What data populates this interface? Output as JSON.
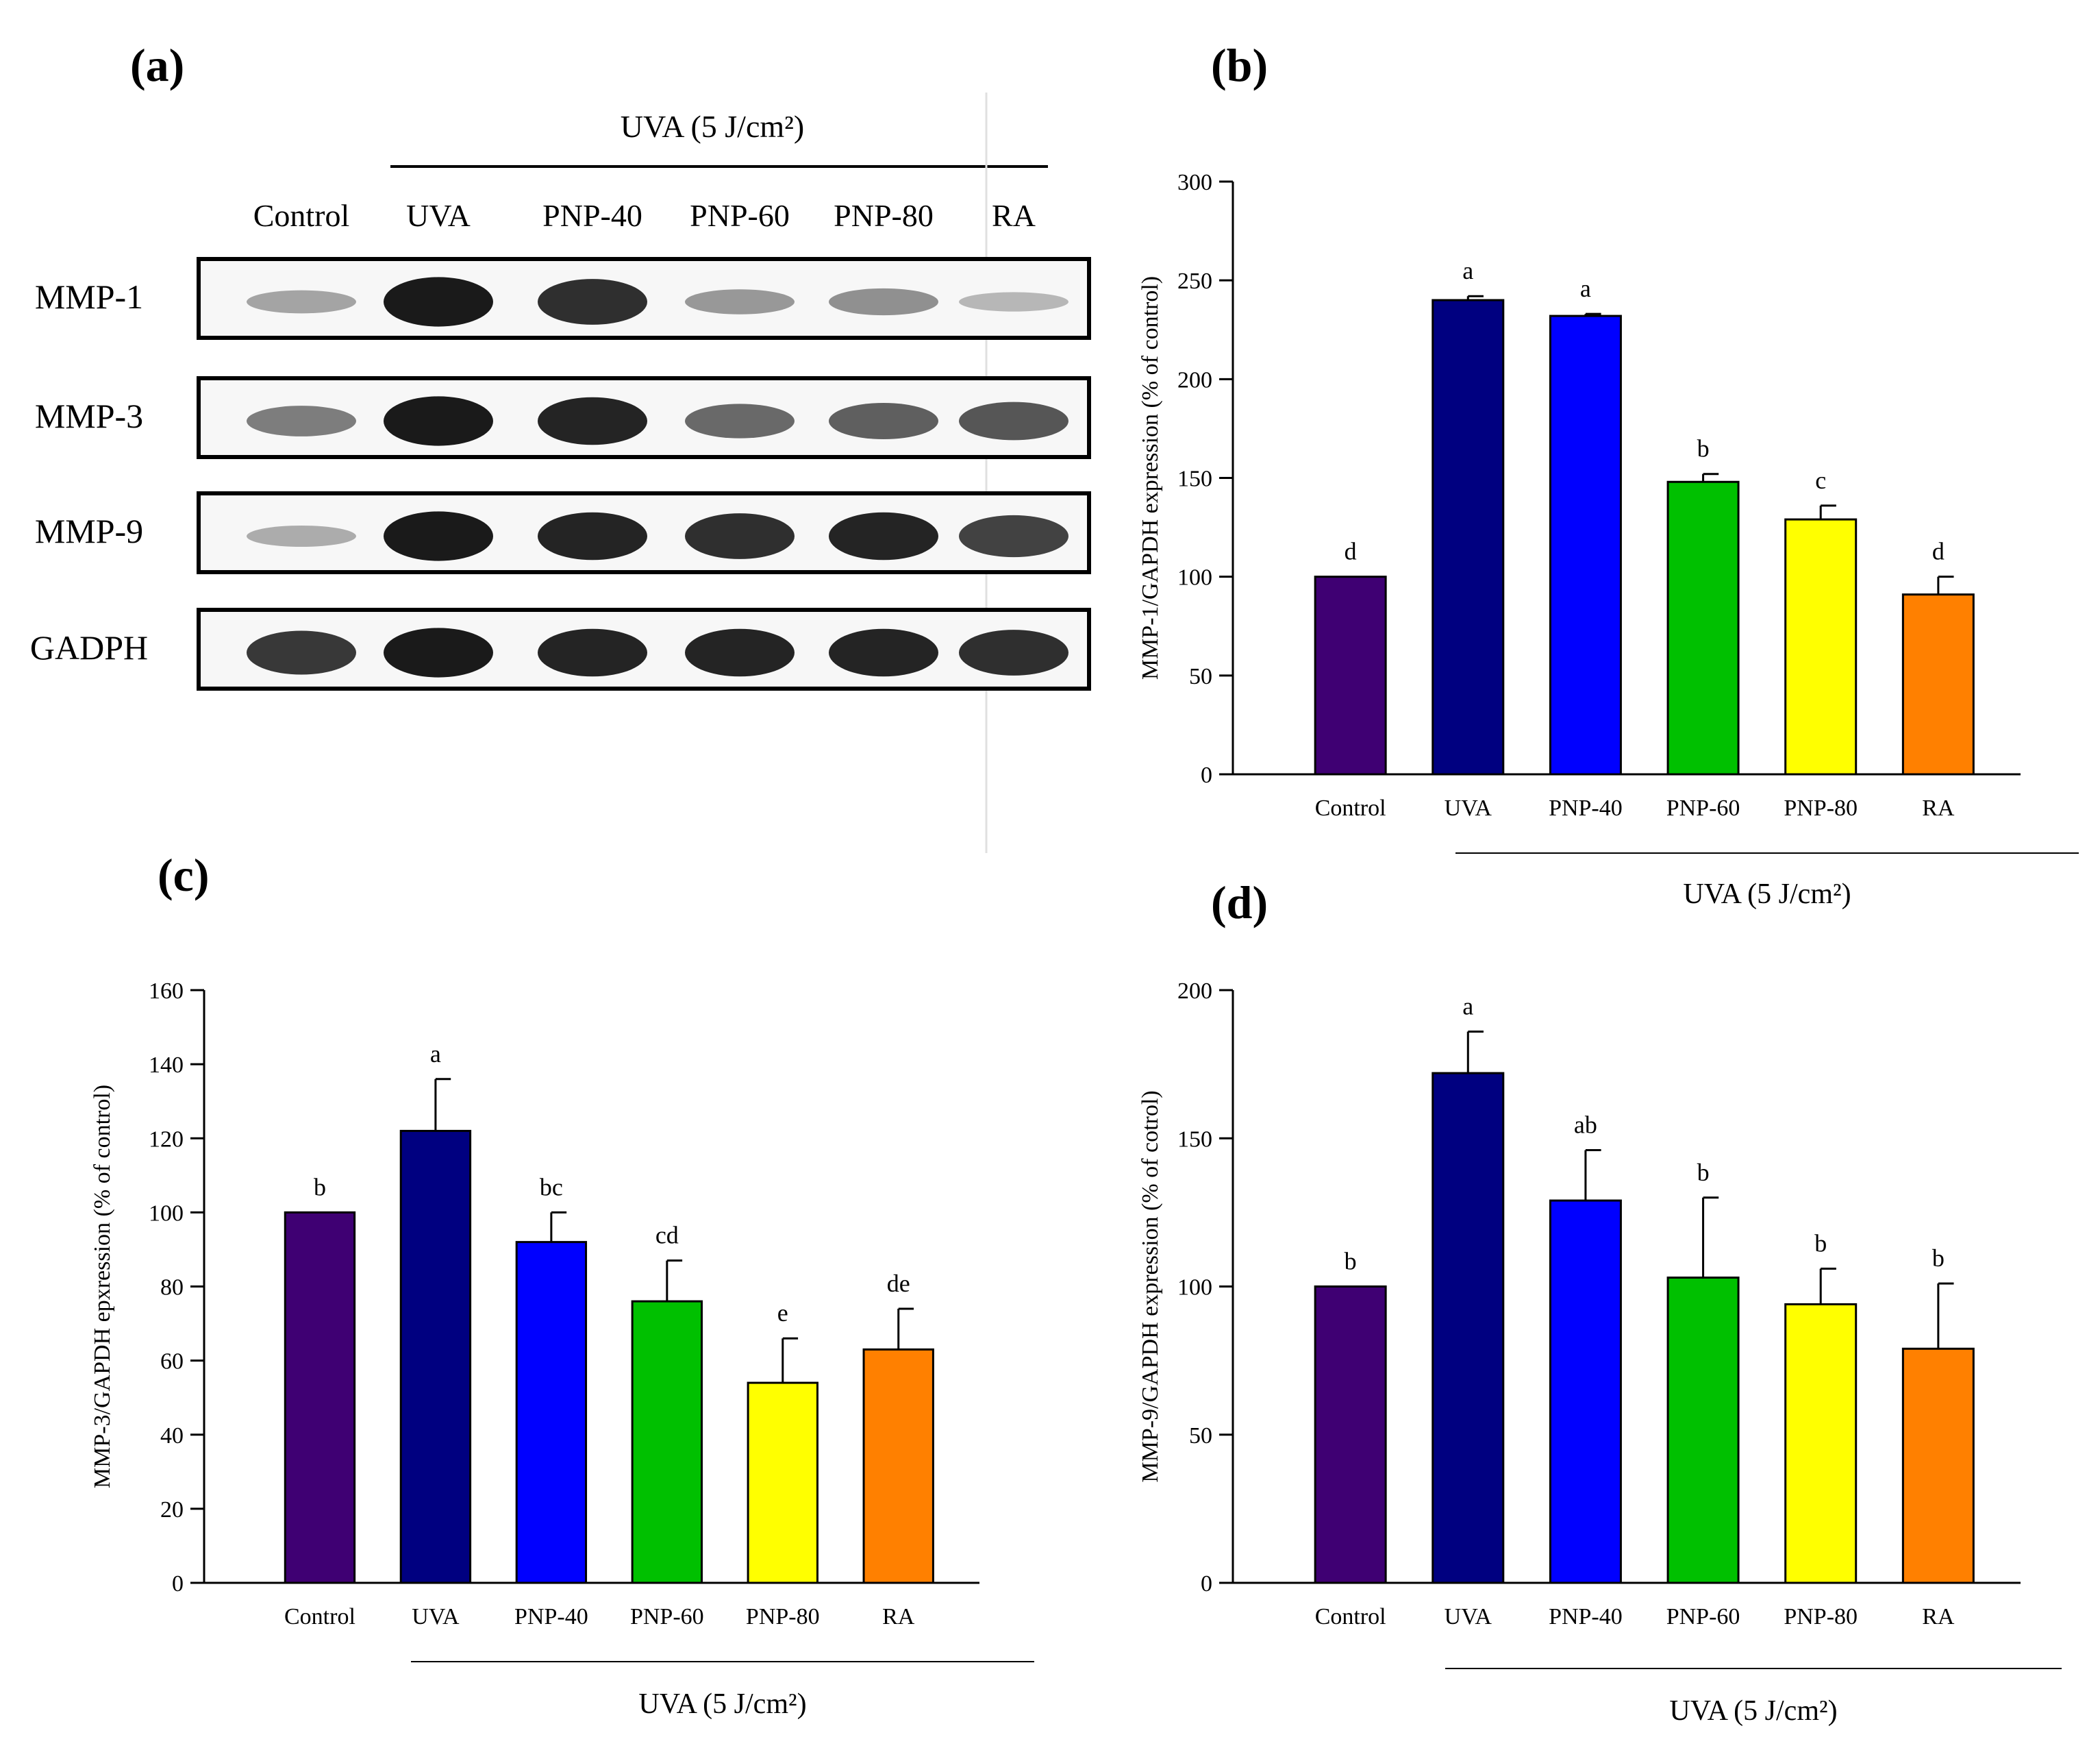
{
  "panel_labels": {
    "a": "(a)",
    "b": "(b)",
    "c": "(c)",
    "d": "(d)"
  },
  "blot": {
    "treatment_label": "UVA (5 J/cm²)",
    "lanes": [
      "Control",
      "UVA",
      "PNP-40",
      "PNP-60",
      "PNP-80",
      "RA"
    ],
    "rows": [
      {
        "label": "MMP-1",
        "intensity": [
          0.25,
          0.95,
          0.85,
          0.3,
          0.35,
          0.15
        ]
      },
      {
        "label": "MMP-3",
        "intensity": [
          0.45,
          0.95,
          0.9,
          0.55,
          0.6,
          0.65
        ]
      },
      {
        "label": "MMP-9",
        "intensity": [
          0.2,
          0.95,
          0.9,
          0.85,
          0.9,
          0.75
        ]
      },
      {
        "label": "GADPH",
        "intensity": [
          0.8,
          0.95,
          0.9,
          0.9,
          0.9,
          0.85
        ]
      }
    ]
  },
  "colors": {
    "bars": [
      "#3f0073",
      "#000080",
      "#0000ff",
      "#00c000",
      "#ffff00",
      "#ff8000"
    ],
    "band": "#111111"
  },
  "chart_data": [
    {
      "id": "b",
      "type": "bar",
      "categories": [
        "Control",
        "UVA",
        "PNP-40",
        "PNP-60",
        "PNP-80",
        "RA"
      ],
      "values": [
        100,
        240,
        232,
        148,
        129,
        91
      ],
      "errors": [
        0,
        2,
        1,
        4,
        7,
        9
      ],
      "letters": [
        "d",
        "a",
        "a",
        "b",
        "c",
        "d"
      ],
      "ylabel": "MMP-1/GAPDH expression (% of control)",
      "ylim": [
        0,
        300
      ],
      "yticks": [
        0,
        50,
        100,
        150,
        200,
        250,
        300
      ],
      "group_label": "UVA (5 J/cm²)"
    },
    {
      "id": "c",
      "type": "bar",
      "categories": [
        "Control",
        "UVA",
        "PNP-40",
        "PNP-60",
        "PNP-80",
        "RA"
      ],
      "values": [
        100,
        122,
        92,
        76,
        54,
        63
      ],
      "errors": [
        0,
        14,
        8,
        11,
        12,
        11
      ],
      "letters": [
        "b",
        "a",
        "bc",
        "cd",
        "e",
        "de"
      ],
      "ylabel": "MMP-3/GAPDH epxression (% of control)",
      "ylim": [
        0,
        160
      ],
      "yticks": [
        0,
        20,
        40,
        60,
        80,
        100,
        120,
        140,
        160
      ],
      "group_label": "UVA (5 J/cm²)"
    },
    {
      "id": "d",
      "type": "bar",
      "categories": [
        "Control",
        "UVA",
        "PNP-40",
        "PNP-60",
        "PNP-80",
        "RA"
      ],
      "values": [
        100,
        172,
        129,
        103,
        94,
        79
      ],
      "errors": [
        0,
        14,
        17,
        27,
        12,
        22
      ],
      "letters": [
        "b",
        "a",
        "ab",
        "b",
        "b",
        "b"
      ],
      "ylabel": "MMP-9/GAPDH expression (% of cotrol)",
      "ylim": [
        0,
        200
      ],
      "yticks": [
        0,
        50,
        100,
        150,
        200
      ],
      "group_label": "UVA (5 J/cm²)"
    }
  ]
}
